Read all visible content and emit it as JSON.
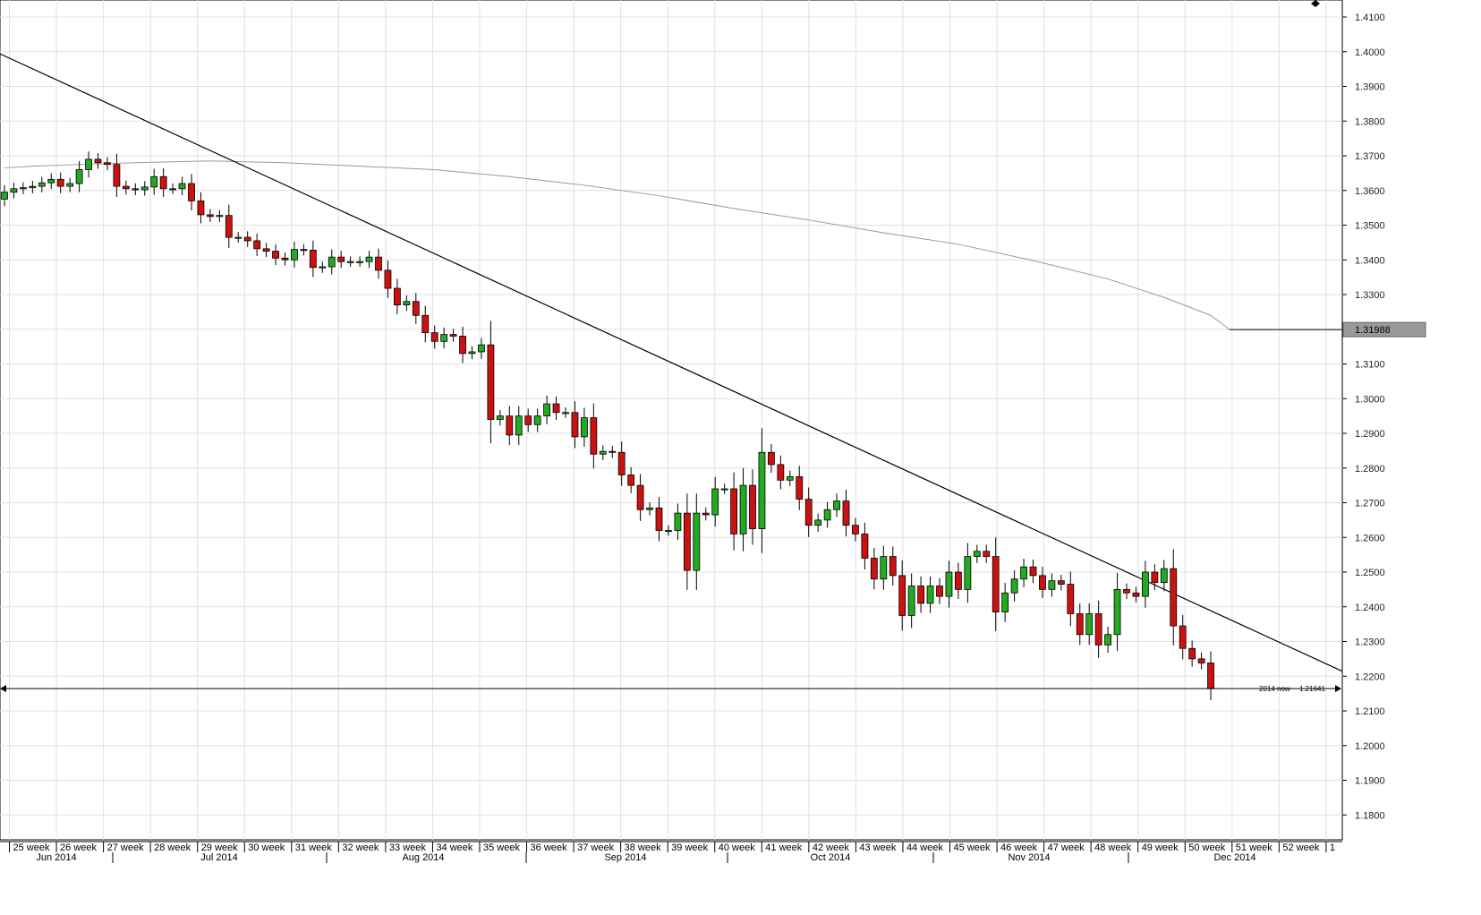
{
  "chart_data": {
    "type": "candlestick",
    "title": "",
    "xlabel": "",
    "ylabel": "",
    "ylim": [
      1.17,
      1.415
    ],
    "grid": true,
    "y_ticks": [
      "1.4100",
      "1.4000",
      "1.3900",
      "1.3800",
      "1.3700",
      "1.3600",
      "1.3500",
      "1.3400",
      "1.3300",
      "1.3200",
      "1.3100",
      "1.3000",
      "1.2900",
      "1.2800",
      "1.2700",
      "1.2600",
      "1.2500",
      "1.2400",
      "1.2300",
      "1.2200",
      "1.2100",
      "1.2000",
      "1.1900",
      "1.1800"
    ],
    "week_labels": [
      "25 week",
      "26 week",
      "27 week",
      "28 week",
      "29 week",
      "30 week",
      "31 week",
      "32 week",
      "33 week",
      "34 week",
      "35 week",
      "36 week",
      "37 week",
      "38 week",
      "39 week",
      "40 week",
      "41 week",
      "42 week",
      "43 week",
      "44 week",
      "45 week",
      "46 week",
      "47 week",
      "48 week",
      "49 week",
      "50 week",
      "51 week",
      "52 week",
      "1"
    ],
    "month_labels": [
      "Jun 2014",
      "Jul 2014",
      "Aug 2014",
      "Sep 2014",
      "Oct 2014",
      "Nov 2014",
      "Dec 2014"
    ],
    "price_label": "1.31988",
    "current_price_label": "1.21641",
    "now_label": "2014 now",
    "colors": {
      "up": "#22aa22",
      "down": "#cc1111",
      "grid": "#e0e0e0",
      "line": "#000000",
      "ma": "#999999"
    },
    "closes": [
      1.3595,
      1.3605,
      1.3608,
      1.3612,
      1.3622,
      1.3632,
      1.3612,
      1.362,
      1.366,
      1.369,
      1.368,
      1.3675,
      1.3612,
      1.3605,
      1.3602,
      1.361,
      1.364,
      1.3605,
      1.3605,
      1.362,
      1.357,
      1.353,
      1.3525,
      1.3528,
      1.3465,
      1.3465,
      1.3455,
      1.3432,
      1.3425,
      1.3405,
      1.34,
      1.343,
      1.3428,
      1.3378,
      1.338,
      1.3408,
      1.3395,
      1.3395,
      1.3395,
      1.3408,
      1.337,
      1.3318,
      1.327,
      1.328,
      1.324,
      1.319,
      1.3165,
      1.3185,
      1.318,
      1.313,
      1.3135,
      1.3155,
      1.294,
      1.295,
      1.2895,
      1.295,
      1.2925,
      1.295,
      1.2985,
      1.296,
      1.296,
      1.289,
      1.2945,
      1.284,
      1.2848,
      1.2845,
      1.278,
      1.275,
      1.268,
      1.2685,
      1.262,
      1.262,
      1.267,
      1.2505,
      1.267,
      1.2665,
      1.274,
      1.274,
      1.261,
      1.275,
      1.2625,
      1.2845,
      1.281,
      1.2765,
      1.2775,
      1.271,
      1.2635,
      1.265,
      1.268,
      1.2705,
      1.2635,
      1.261,
      1.254,
      1.248,
      1.2545,
      1.249,
      1.2375,
      1.246,
      1.241,
      1.246,
      1.243,
      1.25,
      1.245,
      1.2545,
      1.256,
      1.2545,
      1.2385,
      1.244,
      1.248,
      1.2515,
      1.249,
      1.245,
      1.2475,
      1.2465,
      1.238,
      1.232,
      1.238,
      1.229,
      1.232,
      1.245,
      1.244,
      1.243,
      1.25,
      1.247,
      1.251,
      1.2345,
      1.228,
      1.225,
      1.2238,
      1.2164
    ],
    "moving_average": [
      [
        0,
        1.3665
      ],
      [
        3,
        1.367
      ],
      [
        8,
        1.3675
      ],
      [
        14,
        1.368
      ],
      [
        22,
        1.3685
      ],
      [
        30,
        1.368
      ],
      [
        38,
        1.367
      ],
      [
        46,
        1.366
      ],
      [
        54,
        1.364
      ],
      [
        62,
        1.3615
      ],
      [
        70,
        1.3585
      ],
      [
        78,
        1.3548
      ],
      [
        86,
        1.3515
      ],
      [
        94,
        1.3478
      ],
      [
        102,
        1.3445
      ],
      [
        110,
        1.3398
      ],
      [
        118,
        1.3345
      ],
      [
        124,
        1.3292
      ],
      [
        129,
        1.324
      ],
      [
        131,
        1.3199
      ]
    ],
    "trendline": {
      "start": [
        0,
        1.395
      ],
      "end": [
        143,
        1.2215
      ]
    }
  }
}
